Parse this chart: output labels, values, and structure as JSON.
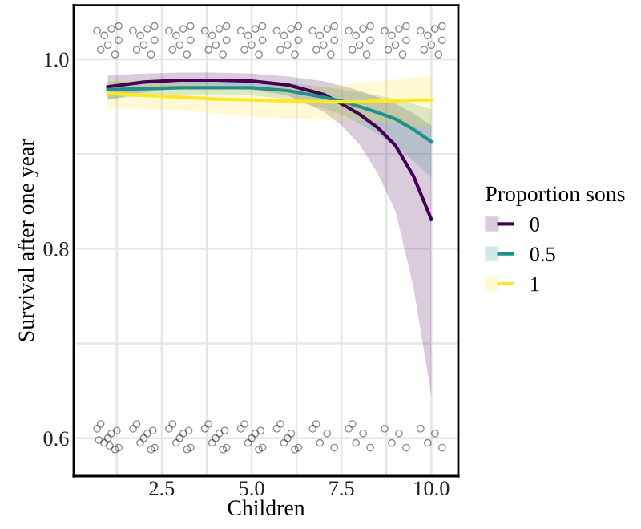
{
  "chart_data": {
    "type": "line",
    "xlabel": "Children",
    "ylabel": "Survival after one year",
    "legend_title": "Proportion sons",
    "legend": "right",
    "grid": true,
    "marker": "none",
    "xlim": [
      0.05,
      10.75
    ],
    "xticks": [
      {
        "value": 1.25,
        "label": null
      },
      2.5,
      {
        "value": 3.75,
        "label": null
      },
      {
        "value": 5,
        "label": "5.0"
      },
      {
        "value": 6.25,
        "label": null
      },
      7.5,
      {
        "value": 8.75,
        "label": null
      },
      {
        "value": 10,
        "label": "10.0"
      }
    ],
    "ylim": [
      0.56,
      1.057
    ],
    "yticks": [
      0.6,
      {
        "value": 0.7,
        "label": null
      },
      0.8,
      {
        "value": 0.9,
        "label": null
      },
      {
        "value": 1,
        "label": "1.0"
      }
    ],
    "series": [
      {
        "type": "scatter",
        "marker": "circle",
        "color": "#000000",
        "x": [
          0.7,
          0.9,
          1.1,
          1.3,
          0.8,
          1.0,
          1.2,
          1.3,
          1.7,
          1.9,
          2.1,
          2.3,
          1.8,
          2.0,
          2.2,
          2.3,
          2.7,
          2.9,
          3.1,
          3.3,
          2.8,
          3.0,
          3.2,
          3.3,
          3.7,
          3.9,
          4.1,
          4.3,
          3.8,
          4.0,
          4.2,
          4.3,
          4.7,
          4.9,
          5.1,
          5.3,
          4.8,
          5.0,
          5.2,
          5.3,
          5.7,
          5.9,
          6.1,
          6.3,
          5.8,
          6.0,
          6.2,
          6.3,
          6.7,
          6.9,
          7.1,
          7.3,
          6.8,
          7.0,
          7.2,
          7.3,
          7.7,
          7.9,
          8.1,
          8.3,
          7.8,
          8.0,
          8.2,
          8.3,
          8.7,
          8.9,
          9.1,
          9.3,
          8.8,
          9.0,
          9.2,
          9.3,
          9.7,
          9.9,
          10.1,
          10.3,
          9.8,
          10.0,
          10.2,
          10.3
        ],
        "values": [
          1.03,
          1.025,
          1.032,
          1.02,
          1.01,
          1.015,
          1.005,
          1.035,
          1.03,
          1.025,
          1.032,
          1.02,
          1.01,
          1.015,
          1.005,
          1.035,
          1.03,
          1.025,
          1.032,
          1.02,
          1.01,
          1.015,
          1.005,
          1.035,
          1.03,
          1.025,
          1.032,
          1.02,
          1.01,
          1.015,
          1.005,
          1.035,
          1.03,
          1.025,
          1.032,
          1.02,
          1.01,
          1.015,
          1.005,
          1.035,
          1.03,
          1.025,
          1.032,
          1.02,
          1.01,
          1.015,
          1.005,
          1.035,
          1.03,
          1.025,
          1.032,
          1.02,
          1.01,
          1.015,
          1.005,
          1.035,
          1.03,
          1.025,
          1.032,
          1.02,
          1.01,
          1.015,
          1.005,
          1.035,
          1.03,
          1.025,
          1.032,
          1.02,
          1.01,
          1.015,
          1.005,
          1.035,
          1.03,
          1.025,
          1.032,
          1.02,
          1.01,
          1.015,
          1.005,
          1.035
        ]
      },
      {
        "type": "scatter",
        "marker": "circle",
        "color": "#000000",
        "x": [
          0.7,
          0.9,
          1.1,
          1.3,
          0.8,
          1.0,
          1.2,
          1.25,
          0.75,
          1.05,
          1.7,
          1.9,
          2.1,
          2.3,
          1.8,
          2.0,
          2.2,
          2.25,
          2.7,
          2.9,
          3.1,
          3.3,
          2.8,
          3.0,
          3.2,
          3.25,
          3.7,
          3.9,
          4.1,
          4.3,
          3.8,
          4.0,
          4.2,
          4.25,
          4.7,
          4.9,
          5.1,
          5.3,
          4.8,
          5.0,
          5.2,
          5.25,
          5.7,
          5.9,
          6.1,
          6.3,
          5.8,
          6.0,
          6.2,
          6.7,
          6.9,
          7.1,
          7.3,
          6.8,
          7.7,
          7.9,
          8.1,
          8.3,
          7.8,
          8.7,
          8.9,
          9.1,
          9.3,
          9.7,
          9.9,
          10.1,
          10.3
        ],
        "values": [
          0.61,
          0.595,
          0.605,
          0.59,
          0.615,
          0.6,
          0.588,
          0.608,
          0.598,
          0.592,
          0.61,
          0.595,
          0.605,
          0.59,
          0.615,
          0.6,
          0.588,
          0.608,
          0.61,
          0.595,
          0.605,
          0.59,
          0.615,
          0.6,
          0.588,
          0.608,
          0.61,
          0.595,
          0.605,
          0.59,
          0.615,
          0.6,
          0.588,
          0.608,
          0.61,
          0.595,
          0.605,
          0.59,
          0.615,
          0.6,
          0.588,
          0.608,
          0.61,
          0.595,
          0.605,
          0.59,
          0.615,
          0.6,
          0.588,
          0.61,
          0.595,
          0.605,
          0.59,
          0.615,
          0.61,
          0.595,
          0.605,
          0.59,
          0.615,
          0.61,
          0.595,
          0.605,
          0.59,
          0.61,
          0.595,
          0.605,
          0.59
        ]
      },
      {
        "name": "0",
        "color": "#440154",
        "x": [
          1,
          2,
          3,
          4,
          5,
          6,
          7,
          7.5,
          8,
          8.5,
          9,
          9.5,
          10
        ],
        "values": [
          0.971,
          0.976,
          0.978,
          0.978,
          0.977,
          0.973,
          0.963,
          0.953,
          0.942,
          0.928,
          0.909,
          0.877,
          0.831
        ],
        "lower": [
          0.957,
          0.965,
          0.969,
          0.97,
          0.968,
          0.962,
          0.945,
          0.93,
          0.91,
          0.88,
          0.84,
          0.76,
          0.645
        ],
        "upper": [
          0.983,
          0.985,
          0.986,
          0.986,
          0.985,
          0.982,
          0.977,
          0.972,
          0.967,
          0.96,
          0.953,
          0.943,
          0.93
        ]
      },
      {
        "name": "0.5",
        "color": "#21908c",
        "x": [
          1,
          2,
          3,
          4,
          5,
          6,
          7,
          7.5,
          8,
          8.5,
          9,
          9.5,
          10
        ],
        "values": [
          0.968,
          0.969,
          0.97,
          0.97,
          0.97,
          0.967,
          0.96,
          0.956,
          0.95,
          0.944,
          0.937,
          0.926,
          0.913
        ],
        "lower": [
          0.958,
          0.961,
          0.963,
          0.963,
          0.962,
          0.958,
          0.948,
          0.942,
          0.932,
          0.921,
          0.908,
          0.893,
          0.875
        ],
        "upper": [
          0.977,
          0.977,
          0.977,
          0.977,
          0.977,
          0.975,
          0.971,
          0.968,
          0.965,
          0.962,
          0.958,
          0.953,
          0.947
        ]
      },
      {
        "name": "1",
        "color": "#fde725",
        "x": [
          1,
          2,
          3,
          4,
          5,
          6,
          7,
          7.5,
          8,
          8.5,
          9,
          9.5,
          10
        ],
        "values": [
          0.964,
          0.962,
          0.96,
          0.958,
          0.957,
          0.956,
          0.955,
          0.955,
          0.955,
          0.956,
          0.956,
          0.957,
          0.957
        ],
        "lower": [
          0.948,
          0.948,
          0.946,
          0.943,
          0.94,
          0.937,
          0.936,
          0.936,
          0.935,
          0.934,
          0.932,
          0.93,
          0.928
        ],
        "upper": [
          0.979,
          0.976,
          0.974,
          0.973,
          0.972,
          0.972,
          0.972,
          0.973,
          0.975,
          0.977,
          0.979,
          0.981,
          0.982
        ]
      }
    ]
  }
}
